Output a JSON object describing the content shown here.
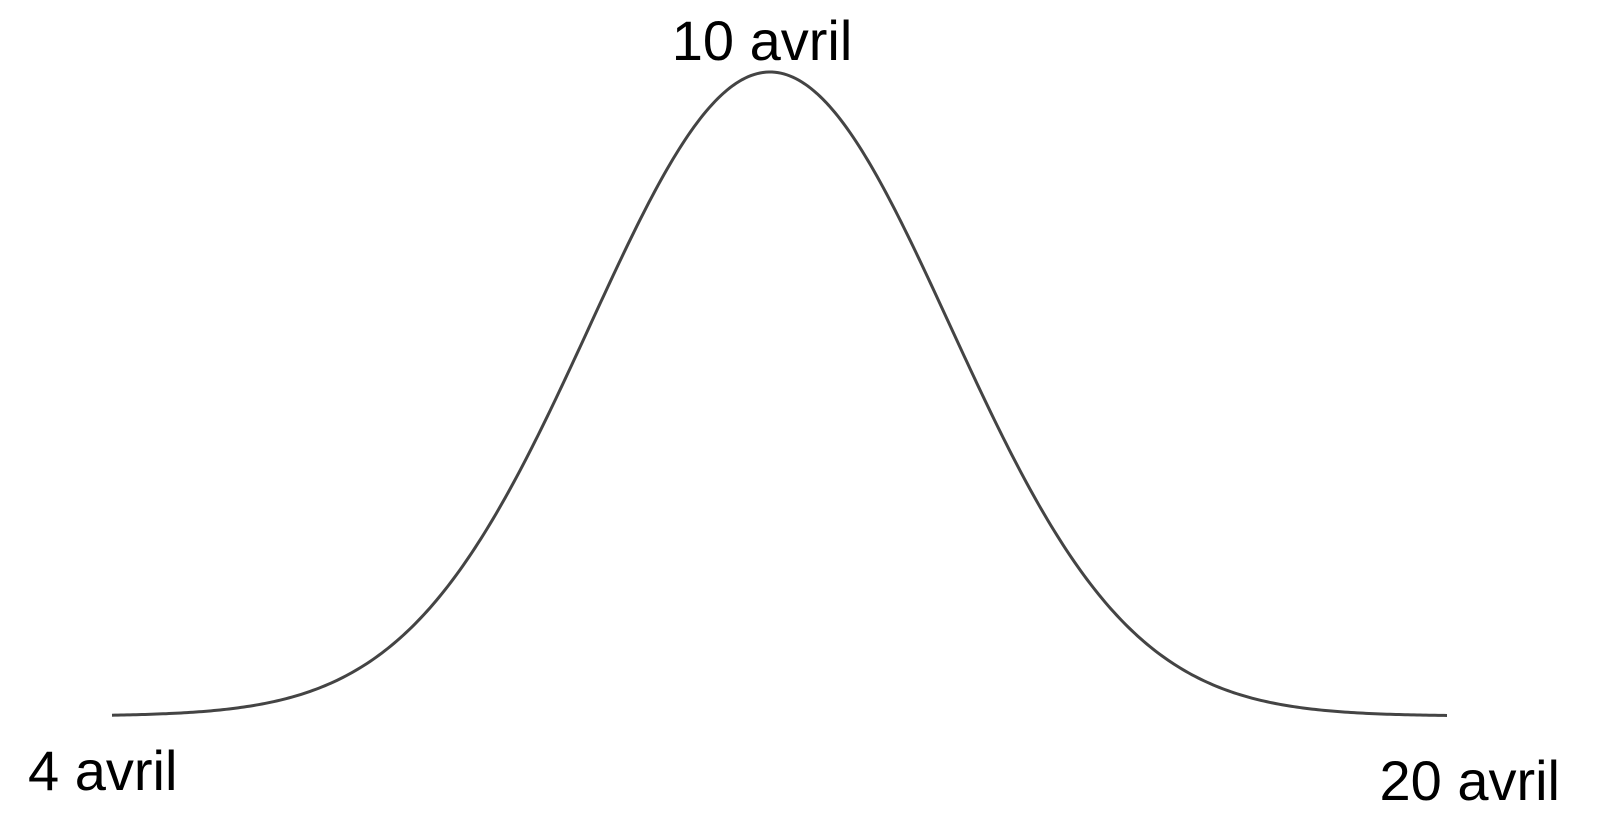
{
  "labels": {
    "peak": "10 avril",
    "start": "4 avril",
    "end": "20 avril"
  }
}
